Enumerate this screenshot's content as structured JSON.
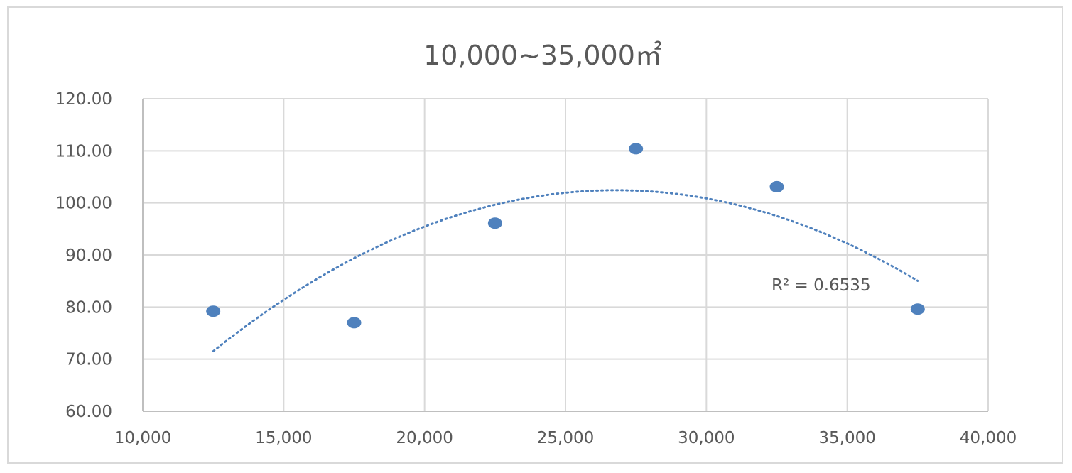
{
  "chart_data": {
    "type": "scatter",
    "title": "10,000~35,000㎡",
    "xlabel": "",
    "ylabel": "",
    "xlim": [
      10000,
      40000
    ],
    "ylim": [
      60,
      120
    ],
    "x_ticks": [
      10000,
      15000,
      20000,
      25000,
      30000,
      35000,
      40000
    ],
    "x_tick_labels": [
      "10,000",
      "15,000",
      "20,000",
      "25,000",
      "30,000",
      "35,000",
      "40,000"
    ],
    "y_ticks": [
      60,
      70,
      80,
      90,
      100,
      110,
      120
    ],
    "y_tick_labels": [
      "60.00",
      "70.00",
      "80.00",
      "90.00",
      "100.00",
      "110.00",
      "120.00"
    ],
    "grid": true,
    "series": [
      {
        "marker_color": "#4f81bd",
        "points": [
          {
            "x": 12500,
            "y": 79.2
          },
          {
            "x": 17500,
            "y": 77.0
          },
          {
            "x": 22500,
            "y": 96.1
          },
          {
            "x": 27500,
            "y": 110.4
          },
          {
            "x": 32500,
            "y": 103.1
          },
          {
            "x": 37500,
            "y": 79.6
          }
        ]
      }
    ],
    "trendline": {
      "type": "polynomial",
      "order": 2,
      "style": "dotted",
      "color": "#4f81bd",
      "x_range": [
        12500,
        37500
      ],
      "label": "R² = 0.6535"
    }
  }
}
